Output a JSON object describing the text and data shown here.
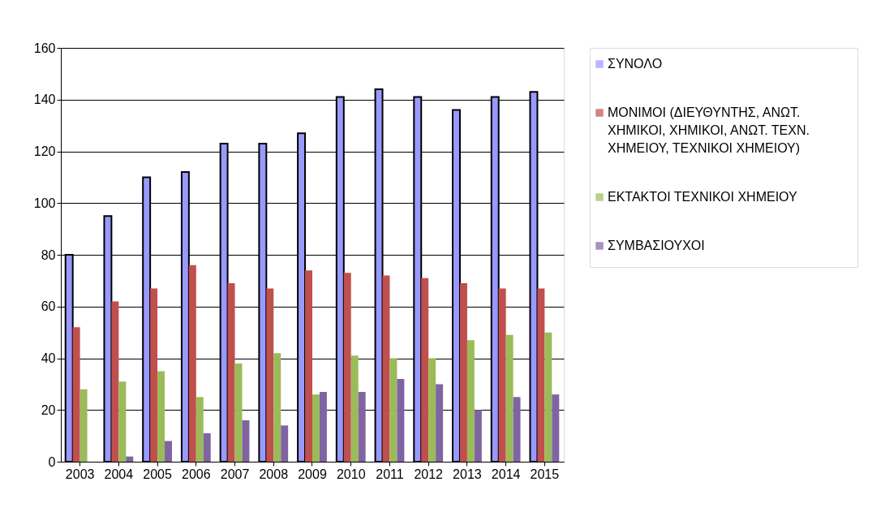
{
  "chart_data": {
    "type": "bar",
    "categories": [
      "2003",
      "2004",
      "2005",
      "2006",
      "2007",
      "2008",
      "2009",
      "2010",
      "2011",
      "2012",
      "2013",
      "2014",
      "2015"
    ],
    "series": [
      {
        "name": "ΣΥΝΟΛΟ",
        "color": "#9999ff",
        "values": [
          80,
          95,
          110,
          112,
          123,
          123,
          127,
          141,
          144,
          141,
          136,
          141,
          143
        ]
      },
      {
        "name": "ΜΟΝΙΜΟΙ (ΔΙΕΥΘΥΝΤΗΣ, ΑΝΩΤ. ΧΗΜΙΚΟΙ, ΧΗΜΙΚΟΙ, ΑΝΩΤ. ΤΕΧΝ. ΧΗΜΕΙΟΥ, ΤΕΧΝΙΚΟΙ ΧΗΜΕΙΟΥ)",
        "color": "#c0504d",
        "values": [
          52,
          62,
          67,
          76,
          69,
          67,
          74,
          73,
          72,
          71,
          69,
          67,
          67
        ]
      },
      {
        "name": "ΕΚΤΑΚΤΟΙ ΤΕΧΝΙΚΟΙ ΧΗΜΕΙΟΥ",
        "color": "#9bbb59",
        "values": [
          28,
          31,
          35,
          25,
          38,
          42,
          26,
          41,
          40,
          40,
          47,
          49,
          50
        ]
      },
      {
        "name": "ΣΥΜΒΑΣΙΟΥΧΟΙ",
        "color": "#8064a2",
        "values": [
          0,
          2,
          8,
          11,
          16,
          14,
          27,
          27,
          32,
          30,
          20,
          25,
          26
        ]
      }
    ],
    "ylim": [
      0,
      160
    ],
    "yticks": [
      0,
      20,
      40,
      60,
      80,
      100,
      120,
      140,
      160
    ],
    "grid": "y",
    "legend": "right"
  }
}
